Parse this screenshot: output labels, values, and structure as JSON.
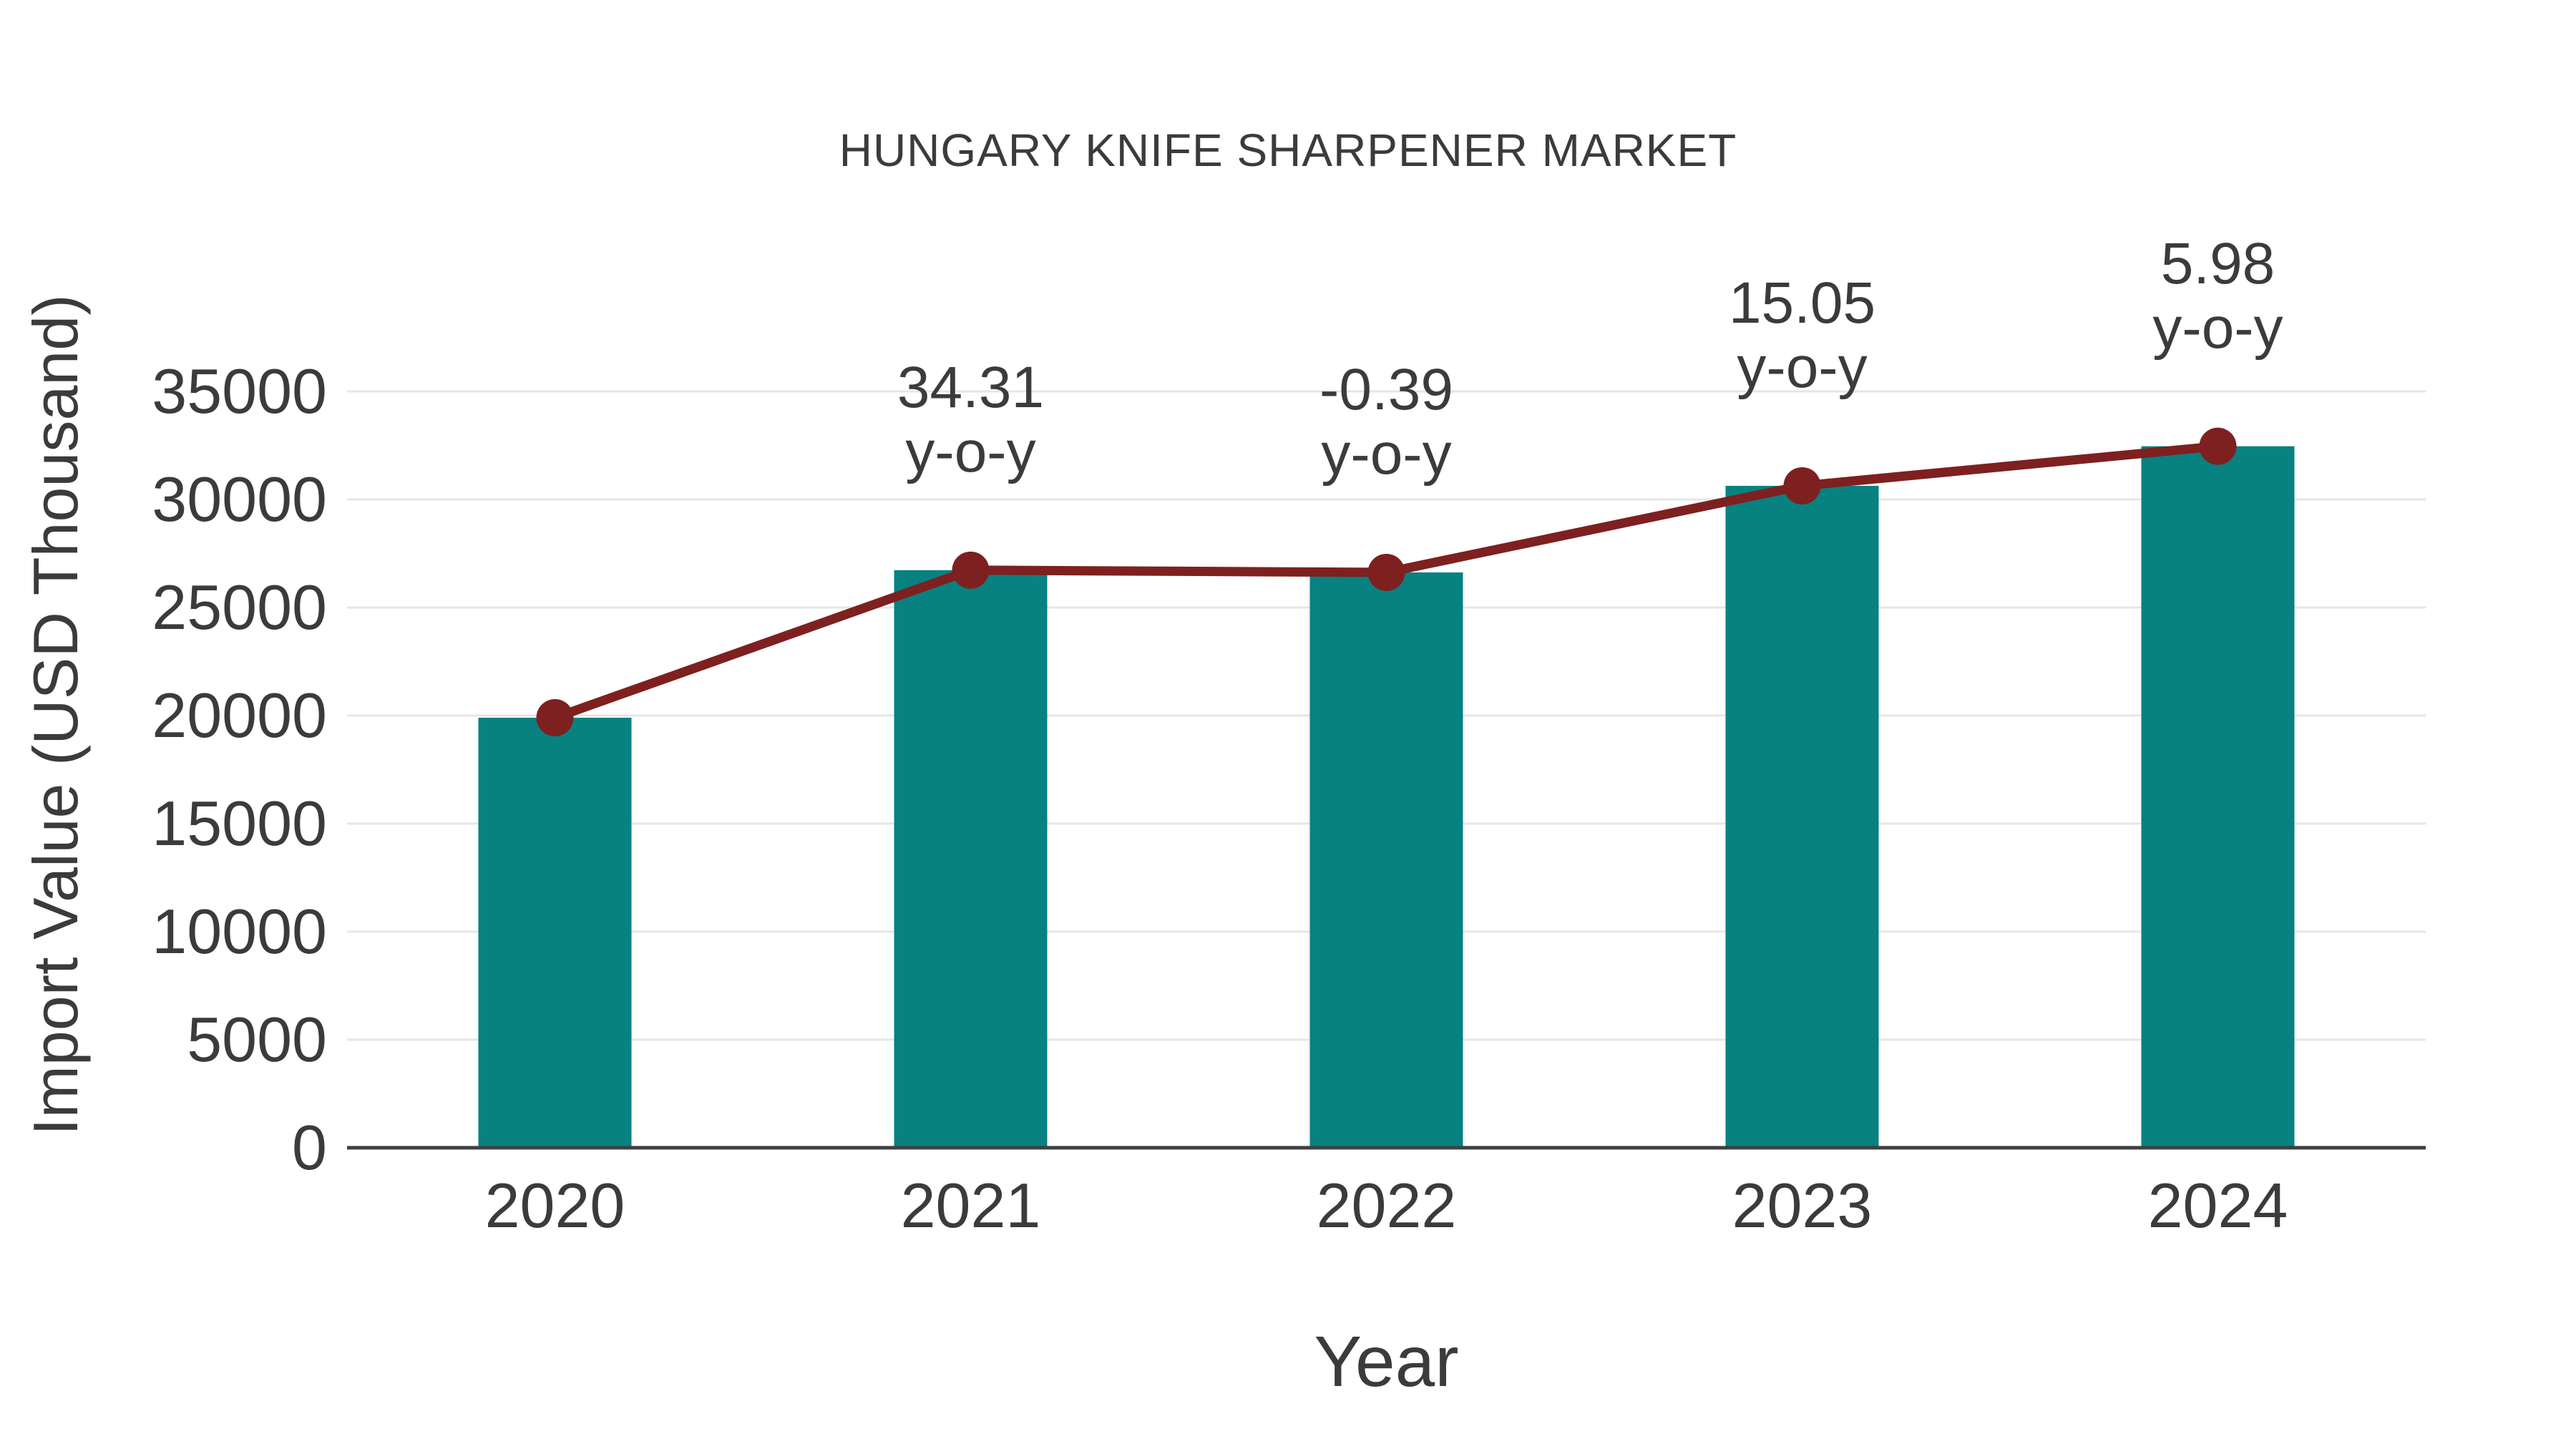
{
  "chart_data": {
    "type": "bar",
    "title": "HUNGARY KNIFE SHARPENER MARKET",
    "xlabel": "Year",
    "ylabel": "Import Value (USD Thousand)",
    "categories": [
      "2020",
      "2021",
      "2022",
      "2023",
      "2024"
    ],
    "series": [
      {
        "name": "Import Value bars",
        "type": "bar",
        "color": "#088181",
        "values": [
          19900,
          26728,
          26624,
          30631,
          32463
        ]
      },
      {
        "name": "Import Value trend line",
        "type": "line",
        "color": "#7E2020",
        "values": [
          19900,
          26728,
          26624,
          30631,
          32463
        ]
      }
    ],
    "annotations": [
      {
        "category": "2021",
        "line1": "34.31",
        "line2": "y-o-y"
      },
      {
        "category": "2022",
        "line1": "-0.39",
        "line2": "y-o-y"
      },
      {
        "category": "2023",
        "line1": "15.05",
        "line2": "y-o-y"
      },
      {
        "category": "2024",
        "line1": "5.98",
        "line2": "y-o-y"
      }
    ],
    "yoy_percent": {
      "2021": 34.31,
      "2022": -0.39,
      "2023": 15.05,
      "2024": 5.98
    },
    "ylim": [
      0,
      35000
    ],
    "yticks": [
      0,
      5000,
      10000,
      15000,
      20000,
      25000,
      30000,
      35000
    ],
    "grid": "horizontal-light",
    "legend": "none",
    "colors": {
      "bar": "#088181",
      "line": "#7E2020",
      "marker": "#7E2020",
      "text": "#3B3B3B",
      "gridline": "#E6E6E6",
      "axis": "#3F3F3F",
      "background": "#FFFFFF"
    }
  }
}
